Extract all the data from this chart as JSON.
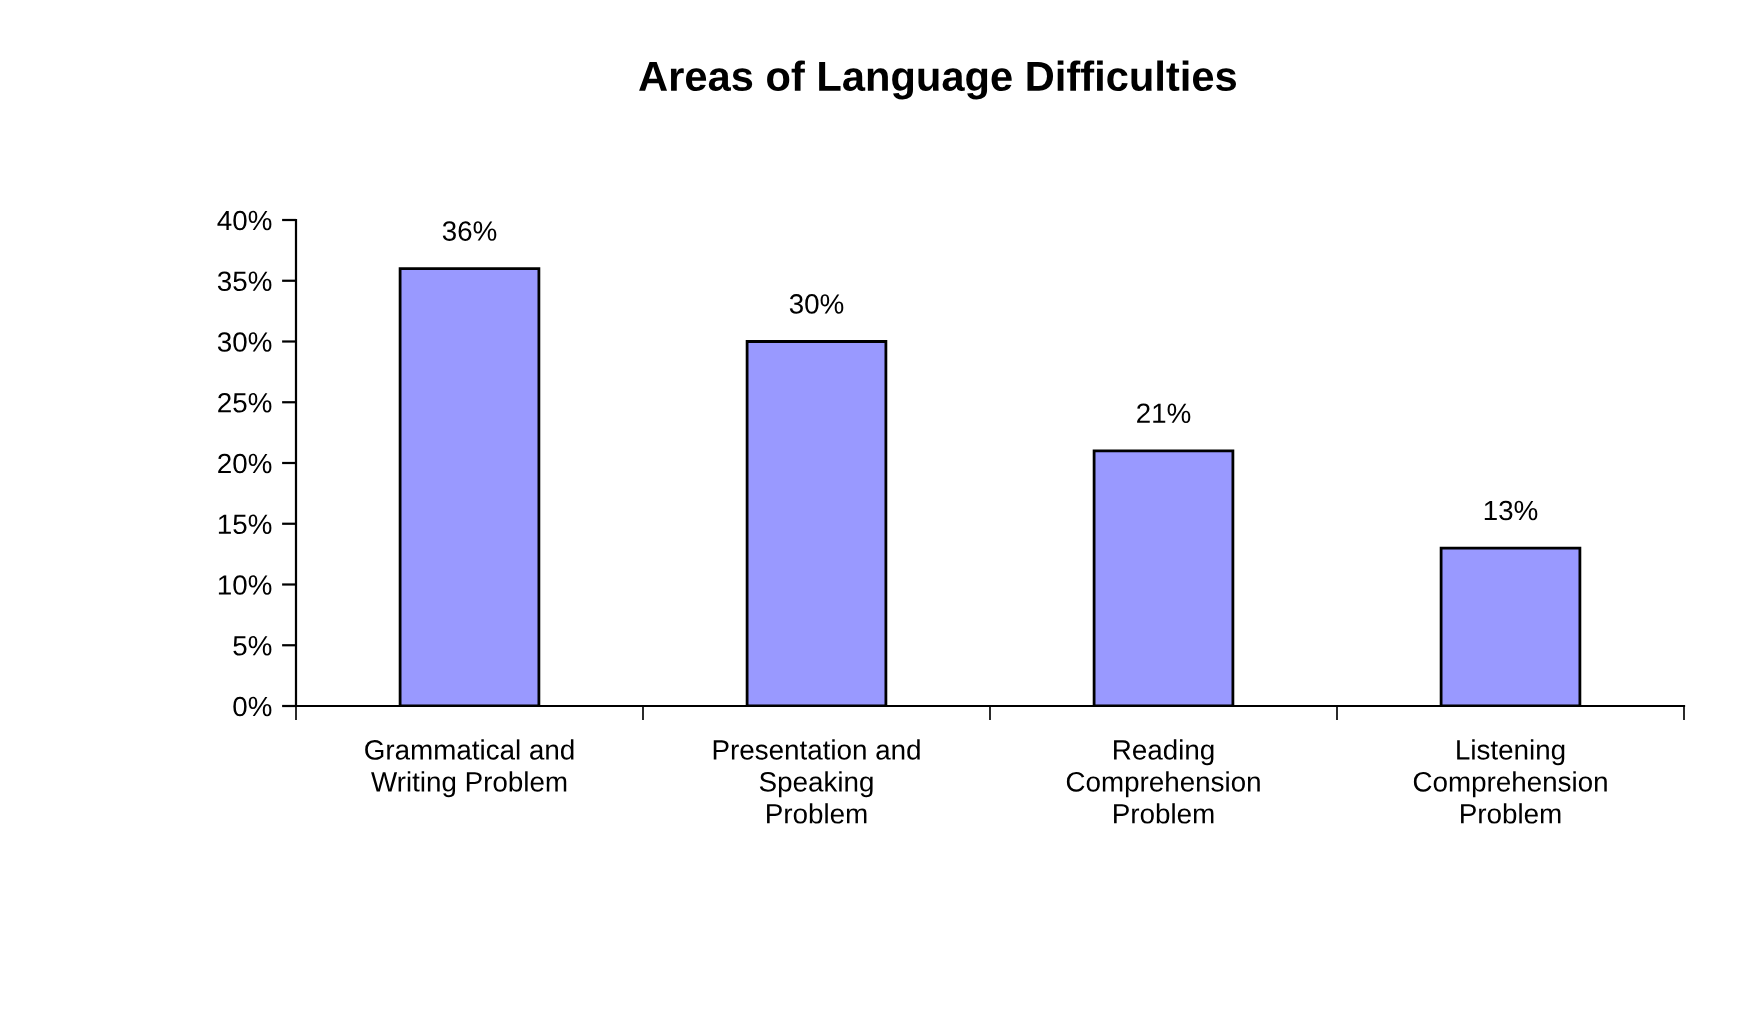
{
  "chart_data": {
    "type": "bar",
    "title": "Areas of Language Difficulties",
    "categories": [
      "Grammatical and\nWriting Problem",
      "Presentation and\nSpeaking\nProblem",
      "Reading\nComprehension\nProblem",
      "Listening\nComprehension\nProblem"
    ],
    "values": [
      36,
      30,
      21,
      13
    ],
    "value_labels": [
      "36%",
      "30%",
      "21%",
      "13%"
    ],
    "color": "#9999ff",
    "ylim": [
      0,
      40
    ],
    "yticks": [
      {
        "value": 0,
        "label": "0%"
      },
      {
        "value": 5,
        "label": "5%"
      },
      {
        "value": 10,
        "label": "10%"
      },
      {
        "value": 15,
        "label": "15%"
      },
      {
        "value": 20,
        "label": "20%"
      },
      {
        "value": 25,
        "label": "25%"
      },
      {
        "value": 30,
        "label": "30%"
      },
      {
        "value": 35,
        "label": "35%"
      },
      {
        "value": 40,
        "label": "40%"
      }
    ],
    "grid": false,
    "legend": false
  }
}
